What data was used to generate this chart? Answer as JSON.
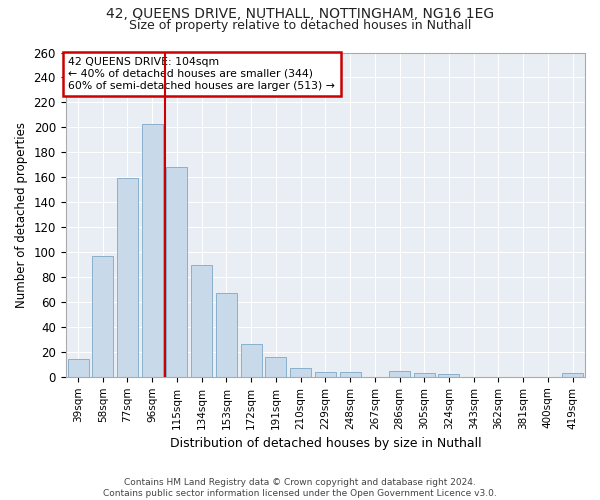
{
  "title_line1": "42, QUEENS DRIVE, NUTHALL, NOTTINGHAM, NG16 1EG",
  "title_line2": "Size of property relative to detached houses in Nuthall",
  "xlabel": "Distribution of detached houses by size in Nuthall",
  "ylabel": "Number of detached properties",
  "categories": [
    "39sqm",
    "58sqm",
    "77sqm",
    "96sqm",
    "115sqm",
    "134sqm",
    "153sqm",
    "172sqm",
    "191sqm",
    "210sqm",
    "229sqm",
    "248sqm",
    "267sqm",
    "286sqm",
    "305sqm",
    "324sqm",
    "343sqm",
    "362sqm",
    "381sqm",
    "400sqm",
    "419sqm"
  ],
  "values": [
    14,
    97,
    159,
    203,
    168,
    90,
    67,
    26,
    16,
    7,
    4,
    4,
    0,
    5,
    3,
    2,
    0,
    0,
    0,
    0,
    3
  ],
  "bar_color": "#c8d9ea",
  "bar_edge_color": "#8ab0cc",
  "annotation_line1": "42 QUEENS DRIVE: 104sqm",
  "annotation_line2": "← 40% of detached houses are smaller (344)",
  "annotation_line3": "60% of semi-detached houses are larger (513) →",
  "annotation_box_facecolor": "#ffffff",
  "annotation_box_edgecolor": "#cc0000",
  "vertical_line_color": "#cc0000",
  "vertical_line_x": 3.5,
  "ylim": [
    0,
    260
  ],
  "yticks": [
    0,
    20,
    40,
    60,
    80,
    100,
    120,
    140,
    160,
    180,
    200,
    220,
    240,
    260
  ],
  "fig_facecolor": "#ffffff",
  "ax_facecolor": "#e8eef4",
  "grid_color": "#ffffff",
  "title1_fontsize": 10,
  "title2_fontsize": 9,
  "footer_line1": "Contains HM Land Registry data © Crown copyright and database right 2024.",
  "footer_line2": "Contains public sector information licensed under the Open Government Licence v3.0."
}
